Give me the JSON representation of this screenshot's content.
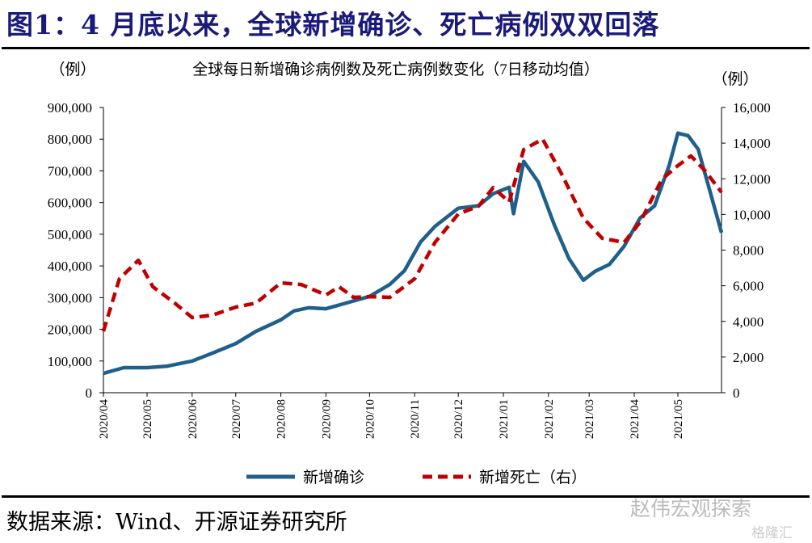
{
  "header": {
    "title": "图1：4 月底以来，全球新增确诊、死亡病例双双回落"
  },
  "footer": {
    "source": "数据来源：Wind、开源证券研究所",
    "watermark": "赵伟宏观探索",
    "watermark2": "格隆汇"
  },
  "chart_data": {
    "type": "line",
    "title": "全球每日新增确诊病例数及死亡病例数变化（7日移动均值）",
    "ylabel": "（例）",
    "y2label": "（例）",
    "ylim": [
      0,
      900000
    ],
    "y2lim": [
      0,
      16000
    ],
    "yticks": [
      "0",
      "100,000",
      "200,000",
      "300,000",
      "400,000",
      "500,000",
      "600,000",
      "700,000",
      "800,000",
      "900,000"
    ],
    "y2ticks": [
      "0",
      "2,000",
      "4,000",
      "6,000",
      "8,000",
      "10,000",
      "12,000",
      "14,000",
      "16,000"
    ],
    "xticks": [
      "2020/04",
      "2020/05",
      "2020/06",
      "2020/07",
      "2020/08",
      "2020/09",
      "2020/10",
      "2020/11",
      "2020/12",
      "2021/01",
      "2021/02",
      "2021/03",
      "2021/04",
      "2021/05"
    ],
    "xlim": [
      "2020-04-01",
      "2021-05-31"
    ],
    "grid": false,
    "legend": "bottom",
    "series": [
      {
        "name": "新增确诊",
        "axis": "left",
        "color": "#1f5f8b",
        "style": "solid",
        "points": [
          [
            "2020-04-01",
            61000
          ],
          [
            "2020-04-15",
            79000
          ],
          [
            "2020-05-01",
            79000
          ],
          [
            "2020-05-15",
            84000
          ],
          [
            "2020-06-01",
            100000
          ],
          [
            "2020-06-15",
            125000
          ],
          [
            "2020-07-01",
            155000
          ],
          [
            "2020-07-15",
            194000
          ],
          [
            "2020-08-01",
            230000
          ],
          [
            "2020-08-10",
            258000
          ],
          [
            "2020-08-20",
            268000
          ],
          [
            "2020-09-01",
            265000
          ],
          [
            "2020-09-15",
            283000
          ],
          [
            "2020-10-01",
            304000
          ],
          [
            "2020-10-15",
            342000
          ],
          [
            "2020-10-25",
            385000
          ],
          [
            "2020-11-05",
            475000
          ],
          [
            "2020-11-15",
            525000
          ],
          [
            "2020-12-01",
            582000
          ],
          [
            "2020-12-15",
            590000
          ],
          [
            "2020-12-25",
            628000
          ],
          [
            "2021-01-05",
            648000
          ],
          [
            "2021-01-08",
            565000
          ],
          [
            "2021-01-15",
            730000
          ],
          [
            "2021-01-25",
            665000
          ],
          [
            "2021-02-05",
            530000
          ],
          [
            "2021-02-15",
            424000
          ],
          [
            "2021-02-25",
            355000
          ],
          [
            "2021-03-05",
            383000
          ],
          [
            "2021-03-15",
            405000
          ],
          [
            "2021-03-25",
            462000
          ],
          [
            "2021-04-05",
            551000
          ],
          [
            "2021-04-15",
            590000
          ],
          [
            "2021-04-25",
            717000
          ],
          [
            "2021-05-01",
            819000
          ],
          [
            "2021-05-08",
            811000
          ],
          [
            "2021-05-15",
            768000
          ],
          [
            "2021-05-22",
            653000
          ],
          [
            "2021-05-31",
            505000
          ]
        ]
      },
      {
        "name": "新增死亡（右）",
        "axis": "right",
        "color": "#c00000",
        "style": "dashed",
        "points": [
          [
            "2020-04-01",
            3445
          ],
          [
            "2020-04-12",
            6390
          ],
          [
            "2020-04-25",
            7430
          ],
          [
            "2020-05-05",
            5940
          ],
          [
            "2020-05-20",
            5030
          ],
          [
            "2020-06-01",
            4215
          ],
          [
            "2020-06-15",
            4350
          ],
          [
            "2020-07-01",
            4800
          ],
          [
            "2020-07-15",
            5030
          ],
          [
            "2020-08-01",
            6160
          ],
          [
            "2020-08-15",
            6070
          ],
          [
            "2020-09-01",
            5480
          ],
          [
            "2020-09-10",
            5940
          ],
          [
            "2020-09-20",
            5350
          ],
          [
            "2020-10-01",
            5390
          ],
          [
            "2020-10-15",
            5350
          ],
          [
            "2020-11-01",
            6390
          ],
          [
            "2020-11-15",
            8430
          ],
          [
            "2020-12-01",
            10020
          ],
          [
            "2020-12-15",
            10470
          ],
          [
            "2020-12-25",
            11510
          ],
          [
            "2021-01-05",
            10700
          ],
          [
            "2021-01-15",
            13640
          ],
          [
            "2021-01-28",
            14230
          ],
          [
            "2021-02-10",
            12280
          ],
          [
            "2021-02-25",
            9790
          ],
          [
            "2021-03-10",
            8660
          ],
          [
            "2021-03-25",
            8430
          ],
          [
            "2021-04-05",
            9560
          ],
          [
            "2021-04-20",
            11970
          ],
          [
            "2021-05-01",
            12740
          ],
          [
            "2021-05-10",
            13280
          ],
          [
            "2021-05-20",
            12420
          ],
          [
            "2021-05-31",
            11240
          ]
        ]
      }
    ]
  }
}
